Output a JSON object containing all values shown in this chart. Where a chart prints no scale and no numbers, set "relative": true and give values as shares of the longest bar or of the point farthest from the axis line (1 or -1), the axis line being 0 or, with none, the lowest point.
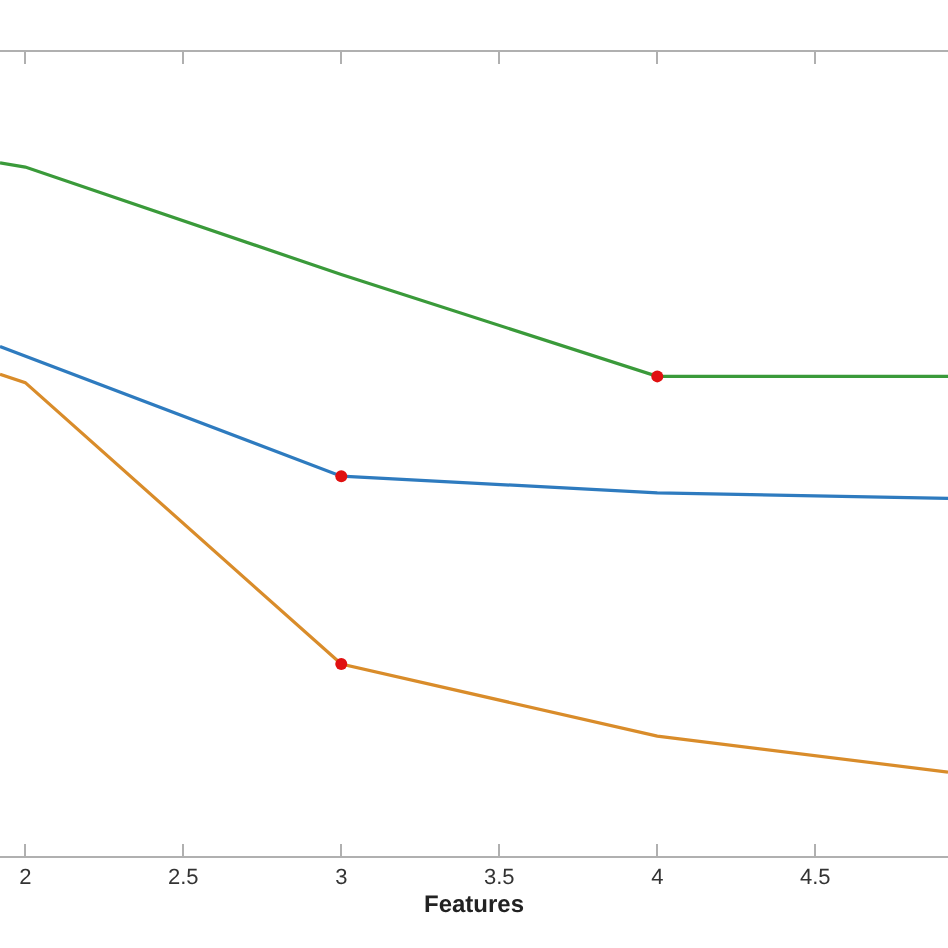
{
  "chart_data": {
    "type": "line",
    "xlabel": "Features",
    "relative": true,
    "xlim": [
      1.92,
      4.92
    ],
    "xticks": [
      2,
      2.5,
      3,
      3.5,
      4,
      4.5
    ],
    "marker": "none",
    "line_style": "solid",
    "series": [
      {
        "color": "#3a9a3a",
        "x": [
          1.92,
          2,
          3,
          4,
          4.92
        ],
        "values": [
          1.0,
          0.994,
          0.839,
          0.692,
          0.692
        ]
      },
      {
        "color": "#2e7bbf",
        "x": [
          1.92,
          3,
          4,
          4.92
        ],
        "values": [
          0.735,
          0.548,
          0.524,
          0.516
        ]
      },
      {
        "color": "#d98c2a",
        "x": [
          1.92,
          2,
          3,
          4,
          4.92
        ],
        "values": [
          0.695,
          0.683,
          0.277,
          0.173,
          0.121
        ]
      },
      {
        "type": "scatter",
        "marker": "circle",
        "color": "#e01010",
        "x": [
          4,
          3,
          3
        ],
        "values": [
          0.692,
          0.548,
          0.277
        ]
      }
    ]
  }
}
